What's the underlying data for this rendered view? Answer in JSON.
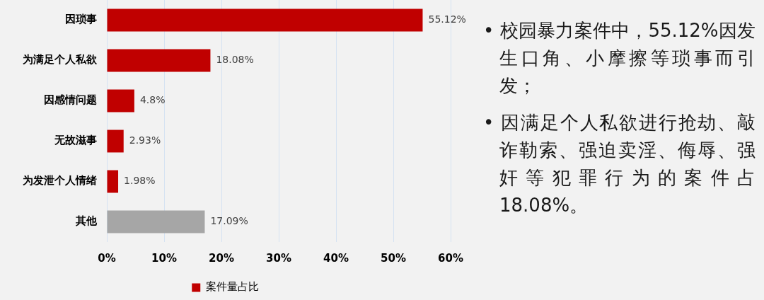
{
  "chart_data": {
    "type": "bar",
    "orientation": "horizontal",
    "categories": [
      "因琐事",
      "为满足个人私欲",
      "因感情问题",
      "无故滋事",
      "为发泄个人情绪",
      "其他"
    ],
    "series": [
      {
        "name": "案件量占比",
        "color": "#c00000",
        "colors": [
          "#c00000",
          "#c00000",
          "#c00000",
          "#c00000",
          "#c00000",
          "#a6a6a6"
        ],
        "values": [
          55.12,
          18.08,
          4.8,
          2.93,
          1.98,
          17.09
        ],
        "value_labels": [
          "55.12%",
          "18.08%",
          "4.8%",
          "2.93%",
          "1.98%",
          "17.09%"
        ]
      }
    ],
    "xlim": [
      0,
      60
    ],
    "xticks": [
      {
        "value": 0,
        "label": "0%"
      },
      {
        "value": 10,
        "label": "10%"
      },
      {
        "value": 20,
        "label": "20%"
      },
      {
        "value": 30,
        "label": "30%"
      },
      {
        "value": 40,
        "label": "40%"
      },
      {
        "value": 50,
        "label": "50%"
      },
      {
        "value": 60,
        "label": "60%"
      }
    ],
    "grid": "x",
    "legend": "bottom",
    "annotations": [
      "• 校园暴力案件中，55.12%因发生口角、小摩擦等琐事而引发；",
      "• 因满足个人私欲进行抢劫、敲诈勒索、强迫卖淫、侮辱、强奸等犯罪行为的案件占18.08%。"
    ]
  }
}
